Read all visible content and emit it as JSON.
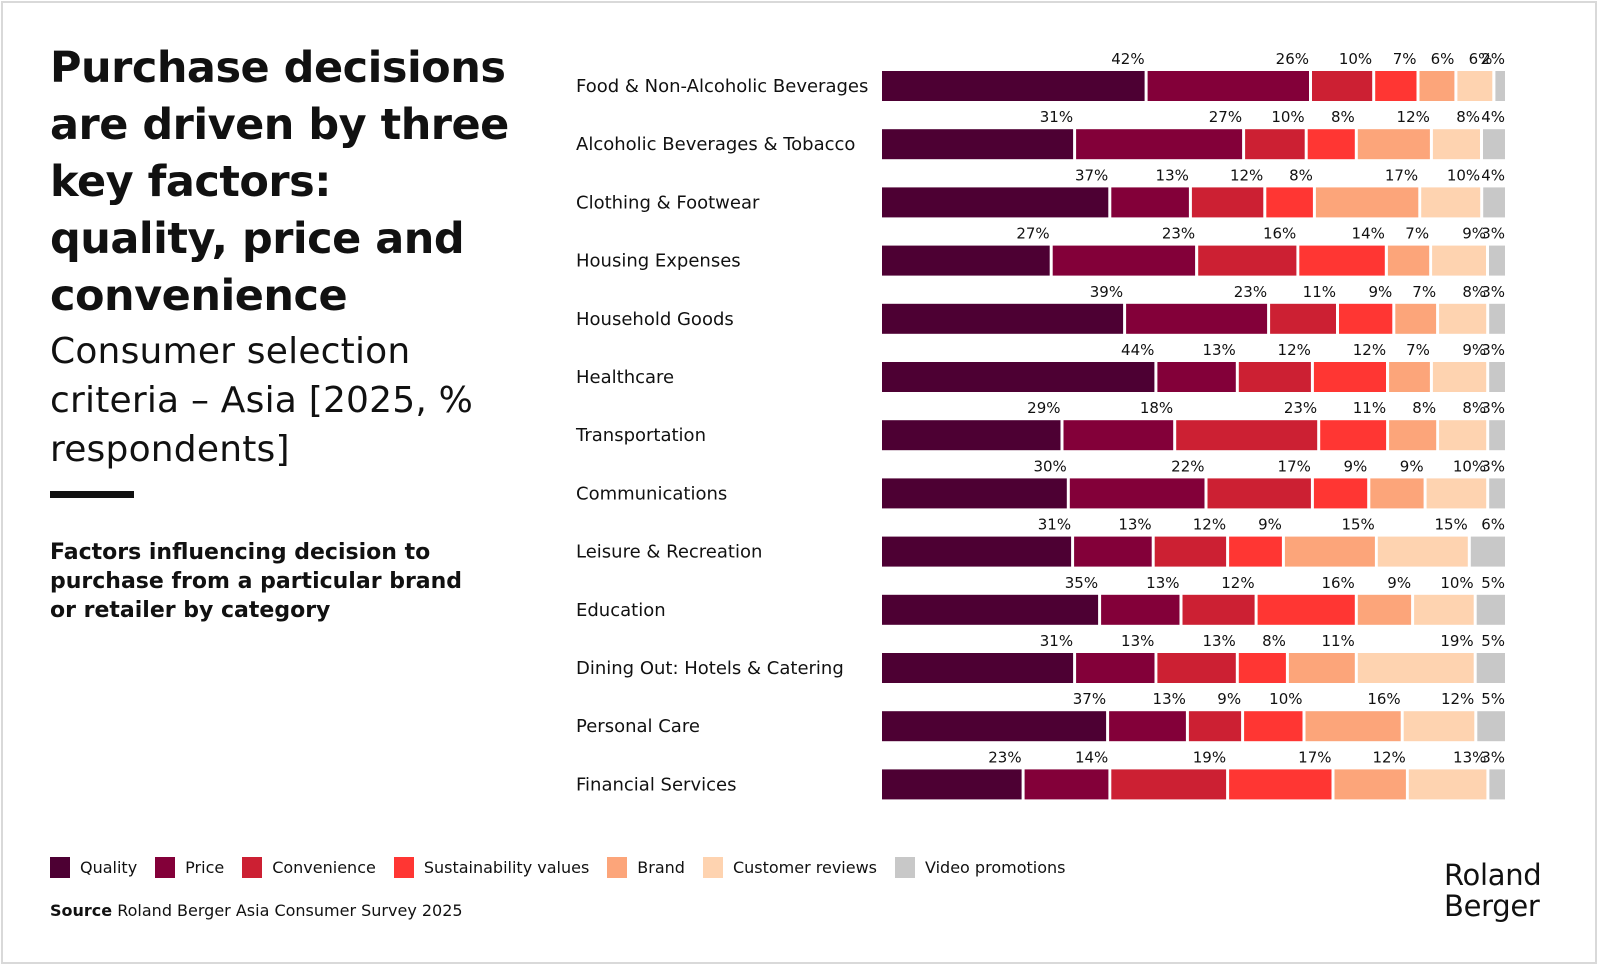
{
  "header": {
    "title": "Purchase decisions are driven by three key factors: quality, price and convenience",
    "subtitle": "Consumer selection criteria – Asia [2025, % respondents]",
    "description": "Factors influencing decision to purchase from a particular brand or retailer by category"
  },
  "footer": {
    "source_label": "Source",
    "source_text": "Roland Berger Asia Consumer Survey 2025",
    "logo_line1": "Roland",
    "logo_line2": "Berger"
  },
  "colors": {
    "Quality": "#4d0033",
    "Price": "#830039",
    "Convenience": "#cc2033",
    "Sustainability values": "#ff3633",
    "Brand": "#fca57a",
    "Customer reviews": "#fed3b0",
    "Video promotions": "#c8c8c8"
  },
  "chart_data": {
    "type": "bar",
    "orientation": "horizontal-stacked",
    "title": "Consumer selection criteria – Asia [2025, % respondents]",
    "xlabel": "",
    "ylabel": "",
    "unit": "%",
    "legend_position": "bottom-left",
    "grid": false,
    "categories": [
      "Food & Non-Alcoholic Beverages",
      "Alcoholic Beverages & Tobacco",
      "Clothing & Footwear",
      "Housing Expenses",
      "Household Goods",
      "Healthcare",
      "Transportation",
      "Communications",
      "Leisure & Recreation",
      "Education",
      "Dining Out: Hotels & Catering",
      "Personal Care",
      "Financial Services"
    ],
    "series": [
      {
        "name": "Quality",
        "values": [
          42,
          31,
          37,
          27,
          39,
          44,
          29,
          30,
          31,
          35,
          31,
          37,
          23
        ]
      },
      {
        "name": "Price",
        "values": [
          26,
          27,
          13,
          23,
          23,
          13,
          18,
          22,
          13,
          13,
          13,
          13,
          14
        ]
      },
      {
        "name": "Convenience",
        "values": [
          10,
          10,
          12,
          16,
          11,
          12,
          23,
          17,
          12,
          12,
          13,
          9,
          19
        ]
      },
      {
        "name": "Sustainability values",
        "values": [
          7,
          8,
          8,
          14,
          9,
          12,
          11,
          9,
          9,
          16,
          8,
          10,
          17
        ]
      },
      {
        "name": "Brand",
        "values": [
          6,
          12,
          17,
          7,
          7,
          7,
          8,
          9,
          15,
          9,
          11,
          16,
          12
        ]
      },
      {
        "name": "Customer reviews",
        "values": [
          6,
          8,
          10,
          9,
          8,
          9,
          8,
          10,
          15,
          10,
          19,
          12,
          13
        ]
      },
      {
        "name": "Video promotions",
        "values": [
          2,
          4,
          4,
          3,
          3,
          3,
          3,
          3,
          6,
          5,
          5,
          5,
          3
        ]
      }
    ]
  }
}
